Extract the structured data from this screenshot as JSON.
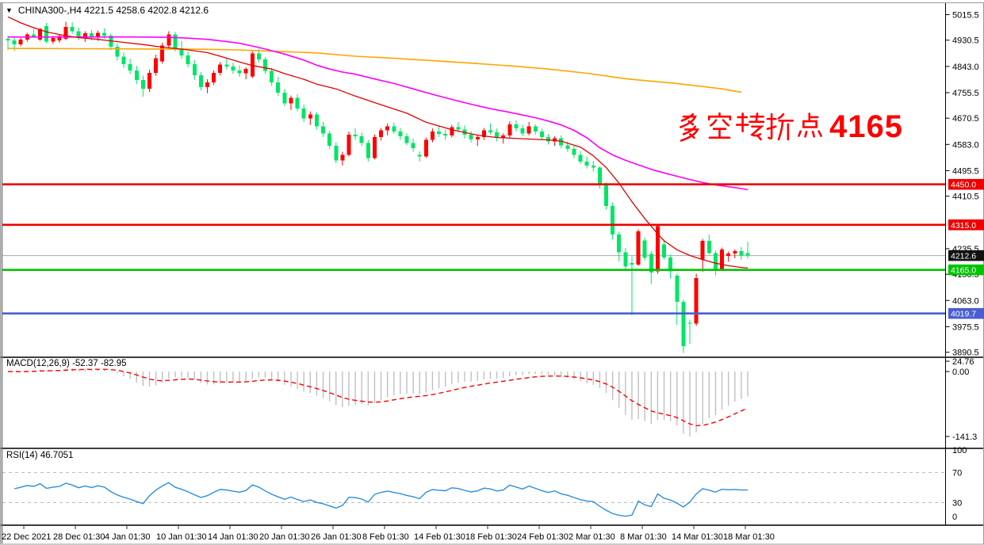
{
  "header": {
    "triangle": "▼",
    "title": "CHINA300-,H4  4221.5 4258.6 4202.8 4212.6"
  },
  "annotation": {
    "text": "多空转折点4165",
    "cjk": "多空转折点",
    "number": "4165",
    "color": "#fe0000"
  },
  "colors": {
    "background": "#ffffff",
    "up_candle": "#ff0000",
    "down_candle": "#00e565",
    "ma_fast": "#dd0000",
    "ma_mid": "#ff00ff",
    "ma_slow": "#ffa500",
    "macd_bar": "#c0c0c0",
    "macd_signal": "#ff0000",
    "rsi_line": "#2a8fdd",
    "level_red": "#ee0000",
    "level_green": "#00c400",
    "level_blue": "#4a5ed2",
    "current_price_line": "#aaaaaa",
    "axis_text": "#000000",
    "grid_dashed": "#bbbbbb"
  },
  "price_axis_ticks": [
    "5015.5",
    "4930.5",
    "4843.0",
    "4755.5",
    "4670.5",
    "4583.0",
    "4495.5",
    "4410.5",
    "4235.5",
    "4150.5",
    "4063.0",
    "3975.5",
    "3890.5"
  ],
  "levels": [
    {
      "value": 4450.0,
      "label": "4450.0",
      "color": "#ee0000"
    },
    {
      "value": 4315.0,
      "label": "4315.0",
      "color": "#ee0000"
    },
    {
      "value": 4165.0,
      "label": "4165.0",
      "color": "#00c400"
    },
    {
      "value": 4019.7,
      "label": "4019.7",
      "color": "#4a5ed2"
    }
  ],
  "current_price": {
    "value": 4212.6,
    "label": "4212.6",
    "badge_bg": "#111111"
  },
  "macd": {
    "label": "MACD(12,26,9) -52.37 -82.95",
    "fast": 12,
    "slow": 26,
    "signal_period": 9,
    "value": "-52.37",
    "signal_value": "-82.95",
    "axis": [
      "24.76",
      "0.00",
      "-141.3"
    ]
  },
  "rsi": {
    "label": "RSI(14) 46.7051",
    "period": 14,
    "value": "46.7051",
    "axis": [
      "100",
      "70",
      "30",
      "0"
    ],
    "grid_levels": [
      70,
      30
    ]
  },
  "time_axis": [
    "22 Dec 2021",
    "28 Dec 01:30",
    "4 Jan 01:30",
    "10 Jan 01:30",
    "14 Jan 01:30",
    "20 Jan 01:30",
    "26 Jan 01:30",
    "8 Feb 01:30",
    "14 Feb 01:30",
    "18 Feb 01:30",
    "24 Feb 01:30",
    "2 Mar 01:30",
    "8 Mar 01:30",
    "14 Mar 01:30",
    "18 Mar 01:30"
  ],
  "chart_data": {
    "type": "candlestick",
    "symbol": "CHINA300-",
    "timeframe": "H4",
    "ohlc_last": {
      "open": 4221.5,
      "high": 4258.6,
      "low": 4202.8,
      "close": 4212.6
    },
    "price_range_visible": [
      3890.5,
      5015.5
    ],
    "ohlc": [
      [
        4935,
        4945,
        4898,
        4930
      ],
      [
        4930,
        4940,
        4895,
        4917
      ],
      [
        4917,
        4938,
        4910,
        4932
      ],
      [
        4932,
        4955,
        4925,
        4950
      ],
      [
        4950,
        4968,
        4938,
        4942
      ],
      [
        4932,
        4971,
        4928,
        4968
      ],
      [
        4977,
        4988,
        4920,
        4926
      ],
      [
        4926,
        4945,
        4918,
        4938
      ],
      [
        4930,
        4948,
        4922,
        4944
      ],
      [
        4935,
        4992,
        4930,
        4975
      ],
      [
        4975,
        4990,
        4952,
        4960
      ],
      [
        4960,
        4972,
        4930,
        4938
      ],
      [
        4938,
        4960,
        4925,
        4953
      ],
      [
        4953,
        4965,
        4930,
        4940
      ],
      [
        4940,
        4962,
        4928,
        4955
      ],
      [
        4955,
        4970,
        4935,
        4945
      ],
      [
        4945,
        4952,
        4898,
        4908
      ],
      [
        4908,
        4920,
        4862,
        4875
      ],
      [
        4875,
        4890,
        4838,
        4850
      ],
      [
        4850,
        4868,
        4818,
        4830
      ],
      [
        4830,
        4845,
        4785,
        4798
      ],
      [
        4798,
        4812,
        4742,
        4768
      ],
      [
        4768,
        4832,
        4758,
        4822
      ],
      [
        4822,
        4882,
        4812,
        4870
      ],
      [
        4860,
        4922,
        4852,
        4912
      ],
      [
        4912,
        4960,
        4902,
        4950
      ],
      [
        4950,
        4958,
        4893,
        4903
      ],
      [
        4903,
        4928,
        4868,
        4880
      ],
      [
        4880,
        4893,
        4840,
        4851
      ],
      [
        4851,
        4864,
        4798,
        4813
      ],
      [
        4813,
        4824,
        4763,
        4774
      ],
      [
        4774,
        4800,
        4754,
        4790
      ],
      [
        4790,
        4830,
        4781,
        4821
      ],
      [
        4821,
        4858,
        4813,
        4849
      ],
      [
        4849,
        4870,
        4833,
        4843
      ],
      [
        4843,
        4856,
        4818,
        4830
      ],
      [
        4830,
        4846,
        4808,
        4820
      ],
      [
        4820,
        4840,
        4800,
        4834
      ],
      [
        4810,
        4893,
        4804,
        4886
      ],
      [
        4886,
        4902,
        4856,
        4866
      ],
      [
        4866,
        4874,
        4818,
        4828
      ],
      [
        4828,
        4838,
        4778,
        4790
      ],
      [
        4790,
        4808,
        4744,
        4756
      ],
      [
        4756,
        4768,
        4710,
        4720
      ],
      [
        4720,
        4746,
        4698,
        4738
      ],
      [
        4738,
        4750,
        4693,
        4703
      ],
      [
        4703,
        4716,
        4658,
        4670
      ],
      [
        4670,
        4693,
        4648,
        4683
      ],
      [
        4683,
        4690,
        4633,
        4643
      ],
      [
        4643,
        4658,
        4608,
        4620
      ],
      [
        4620,
        4628,
        4568,
        4578
      ],
      [
        4578,
        4590,
        4520,
        4530
      ],
      [
        4530,
        4558,
        4513,
        4548
      ],
      [
        4548,
        4626,
        4543,
        4616
      ],
      [
        4616,
        4638,
        4598,
        4610
      ],
      [
        4610,
        4623,
        4578,
        4588
      ],
      [
        4588,
        4598,
        4526,
        4538
      ],
      [
        4538,
        4616,
        4533,
        4608
      ],
      [
        4608,
        4638,
        4596,
        4630
      ],
      [
        4630,
        4653,
        4613,
        4643
      ],
      [
        4643,
        4656,
        4618,
        4626
      ],
      [
        4626,
        4638,
        4598,
        4610
      ],
      [
        4610,
        4620,
        4580,
        4588
      ],
      [
        4588,
        4603,
        4558,
        4570
      ],
      [
        4548,
        4560,
        4526,
        4543
      ],
      [
        4543,
        4606,
        4538,
        4598
      ],
      [
        4598,
        4636,
        4590,
        4626
      ],
      [
        4626,
        4646,
        4608,
        4618
      ],
      [
        4618,
        4633,
        4598,
        4613
      ],
      [
        4613,
        4648,
        4606,
        4640
      ],
      [
        4640,
        4658,
        4623,
        4633
      ],
      [
        4633,
        4646,
        4603,
        4616
      ],
      [
        4616,
        4628,
        4590,
        4600
      ],
      [
        4600,
        4616,
        4578,
        4608
      ],
      [
        4608,
        4638,
        4598,
        4630
      ],
      [
        4630,
        4653,
        4616,
        4623
      ],
      [
        4623,
        4636,
        4593,
        4606
      ],
      [
        4606,
        4620,
        4586,
        4613
      ],
      [
        4613,
        4660,
        4603,
        4650
      ],
      [
        4650,
        4663,
        4626,
        4636
      ],
      [
        4636,
        4648,
        4610,
        4620
      ],
      [
        4620,
        4658,
        4613,
        4643
      ],
      [
        4643,
        4650,
        4616,
        4626
      ],
      [
        4626,
        4636,
        4598,
        4608
      ],
      [
        4608,
        4618,
        4583,
        4593
      ],
      [
        4593,
        4610,
        4578,
        4603
      ],
      [
        4603,
        4613,
        4570,
        4580
      ],
      [
        4580,
        4593,
        4558,
        4568
      ],
      [
        4568,
        4578,
        4538,
        4548
      ],
      [
        4548,
        4560,
        4518,
        4526
      ],
      [
        4526,
        4543,
        4503,
        4513
      ],
      [
        4513,
        4528,
        4493,
        4506
      ],
      [
        4506,
        4510,
        4436,
        4448
      ],
      [
        4448,
        4456,
        4366,
        4378
      ],
      [
        4378,
        4390,
        4266,
        4283
      ],
      [
        4283,
        4293,
        4193,
        4223
      ],
      [
        4223,
        4238,
        4166,
        4176
      ],
      [
        4188,
        4210,
        4013,
        4183
      ],
      [
        4183,
        4300,
        4178,
        4293
      ],
      [
        4263,
        4272,
        4196,
        4205
      ],
      [
        4218,
        4228,
        4118,
        4156
      ],
      [
        4160,
        4318,
        4152,
        4310
      ],
      [
        4250,
        4266,
        4198,
        4206
      ],
      [
        4206,
        4216,
        4136,
        4160
      ],
      [
        4146,
        4152,
        3982,
        4058
      ],
      [
        4058,
        4066,
        3888,
        3910
      ],
      [
        3988,
        3999,
        3918,
        3986
      ],
      [
        3986,
        4152,
        3978,
        4138
      ],
      [
        4200,
        4268,
        4158,
        4262
      ],
      [
        4262,
        4283,
        4216,
        4221
      ],
      [
        4221,
        4229,
        4147,
        4166
      ],
      [
        4168,
        4239,
        4161,
        4233
      ],
      [
        4211,
        4226,
        4192,
        4219
      ],
      [
        4219,
        4233,
        4204,
        4227
      ],
      [
        4227,
        4241,
        4199,
        4213
      ],
      [
        4221.5,
        4258.6,
        4202.8,
        4212.6
      ]
    ],
    "ma_fast_points": [
      [
        0,
        5008
      ],
      [
        2,
        4988
      ],
      [
        4,
        4972
      ],
      [
        6,
        4958
      ],
      [
        9,
        4945
      ],
      [
        11,
        4939
      ],
      [
        14,
        4933
      ],
      [
        16,
        4928
      ],
      [
        18,
        4923
      ],
      [
        21,
        4916
      ],
      [
        23,
        4910
      ],
      [
        26,
        4903
      ],
      [
        28,
        4898
      ],
      [
        31,
        4889
      ],
      [
        33,
        4877
      ],
      [
        36,
        4858
      ],
      [
        38,
        4846
      ],
      [
        41,
        4834
      ],
      [
        43,
        4819
      ],
      [
        46,
        4800
      ],
      [
        48,
        4784
      ],
      [
        51,
        4768
      ],
      [
        54,
        4744
      ],
      [
        58,
        4715
      ],
      [
        62,
        4687
      ],
      [
        65,
        4657
      ],
      [
        69,
        4632
      ],
      [
        73,
        4614
      ],
      [
        76,
        4606
      ],
      [
        80,
        4602
      ],
      [
        84,
        4598
      ],
      [
        86,
        4594
      ],
      [
        89,
        4574
      ],
      [
        91,
        4545
      ],
      [
        93,
        4506
      ],
      [
        95,
        4454
      ],
      [
        97,
        4392
      ],
      [
        99,
        4336
      ],
      [
        101,
        4285
      ],
      [
        102,
        4262
      ],
      [
        104,
        4232
      ],
      [
        106,
        4213
      ],
      [
        108,
        4199
      ],
      [
        110,
        4187
      ],
      [
        112,
        4179
      ],
      [
        114,
        4173
      ],
      [
        115,
        4171
      ]
    ],
    "ma_mid_points": [
      [
        0,
        4941
      ],
      [
        10,
        4941
      ],
      [
        20,
        4941
      ],
      [
        25,
        4940
      ],
      [
        28,
        4937
      ],
      [
        31,
        4933
      ],
      [
        34,
        4926
      ],
      [
        36,
        4920
      ],
      [
        38,
        4911
      ],
      [
        40,
        4901
      ],
      [
        43,
        4884
      ],
      [
        46,
        4864
      ],
      [
        48,
        4847
      ],
      [
        50,
        4834
      ],
      [
        52,
        4824
      ],
      [
        54,
        4817
      ],
      [
        57,
        4801
      ],
      [
        60,
        4786
      ],
      [
        63,
        4768
      ],
      [
        66,
        4750
      ],
      [
        69,
        4733
      ],
      [
        72,
        4717
      ],
      [
        75,
        4702
      ],
      [
        78,
        4690
      ],
      [
        80,
        4681
      ],
      [
        82,
        4672
      ],
      [
        84,
        4661
      ],
      [
        86,
        4648
      ],
      [
        88,
        4630
      ],
      [
        90,
        4605
      ],
      [
        92,
        4572
      ],
      [
        94,
        4548
      ],
      [
        96,
        4530
      ],
      [
        98,
        4515
      ],
      [
        100,
        4500
      ],
      [
        102,
        4488
      ],
      [
        104,
        4477
      ],
      [
        106,
        4466
      ],
      [
        108,
        4456
      ],
      [
        110,
        4448
      ],
      [
        112,
        4442
      ],
      [
        114,
        4436
      ],
      [
        115,
        4432
      ]
    ],
    "ma_slow_points": [
      [
        0,
        4903
      ],
      [
        12,
        4902
      ],
      [
        24,
        4901
      ],
      [
        30,
        4900
      ],
      [
        36,
        4898
      ],
      [
        42,
        4893
      ],
      [
        48,
        4888
      ],
      [
        54,
        4877
      ],
      [
        60,
        4870
      ],
      [
        66,
        4862
      ],
      [
        72,
        4854
      ],
      [
        78,
        4845
      ],
      [
        84,
        4834
      ],
      [
        90,
        4820
      ],
      [
        96,
        4802
      ],
      [
        100,
        4794
      ],
      [
        104,
        4786
      ],
      [
        108,
        4776
      ],
      [
        111,
        4768
      ],
      [
        114,
        4757
      ]
    ]
  }
}
